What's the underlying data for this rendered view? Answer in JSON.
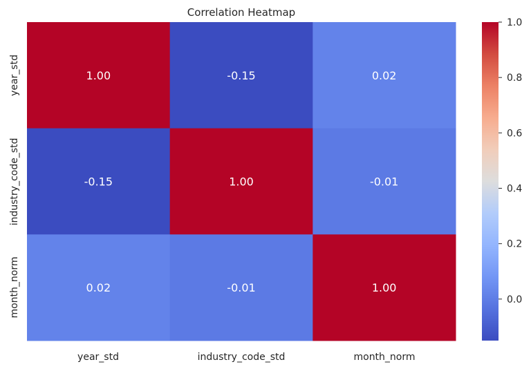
{
  "chart_data": {
    "type": "heatmap",
    "title": "Correlation Heatmap",
    "x_labels": [
      "year_std",
      "industry_code_std",
      "month_norm"
    ],
    "y_labels": [
      "year_std",
      "industry_code_std",
      "month_norm"
    ],
    "values": [
      [
        1.0,
        -0.15,
        0.02
      ],
      [
        -0.15,
        1.0,
        -0.01
      ],
      [
        0.02,
        -0.01,
        1.0
      ]
    ],
    "annotations": [
      [
        "1.00",
        "-0.15",
        "0.02"
      ],
      [
        "-0.15",
        "1.00",
        "-0.01"
      ],
      [
        "0.02",
        "-0.01",
        "1.00"
      ]
    ],
    "colormap": "coolwarm",
    "colorbar": {
      "vmin": -0.15,
      "vmax": 1.0,
      "ticks": [
        0.0,
        0.2,
        0.4,
        0.6,
        0.8,
        1.0
      ],
      "tick_labels": [
        "0.0",
        "0.2",
        "0.4",
        "0.6",
        "0.8",
        "1.0"
      ]
    },
    "colors": {
      "cool": "#3b4cc0",
      "neutral": "#dddddd",
      "warm": "#b40426",
      "text": "#262626",
      "annotation_text": "#ffffff"
    }
  }
}
